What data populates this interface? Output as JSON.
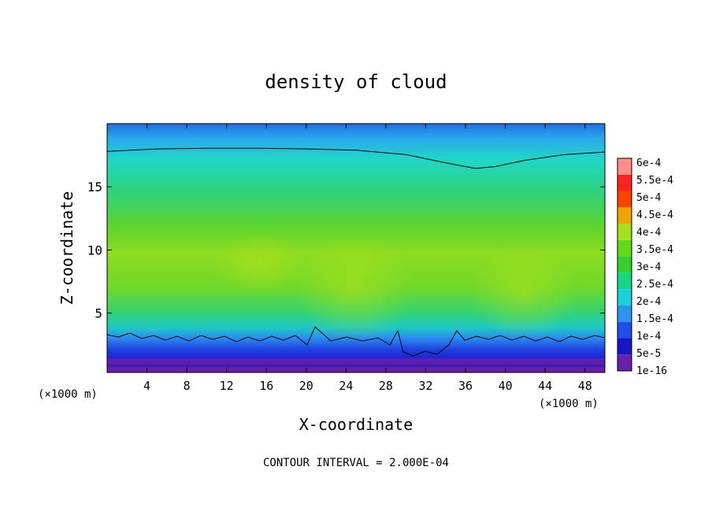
{
  "chart_data": {
    "type": "heatmap",
    "title": "density of cloud",
    "xlabel": "X-coordinate",
    "ylabel": "Z-coordinate",
    "x_unit": "(×1000 m)",
    "x_unit_right": "(×1000 m)",
    "xlim": [
      0,
      50
    ],
    "ylim": [
      0.3,
      20
    ],
    "x_ticks": [
      4,
      8,
      12,
      16,
      20,
      24,
      28,
      32,
      36,
      40,
      44,
      48
    ],
    "y_ticks": [
      5,
      10,
      15
    ],
    "colorbar": {
      "labels": [
        "1e-16",
        "5e-5",
        "1e-4",
        "1.5e-4",
        "2e-4",
        "2.5e-4",
        "3e-4",
        "3.5e-4",
        "4e-4",
        "4.5e-4",
        "5e-4",
        "5.5e-4",
        "6e-4"
      ],
      "colors": [
        "#6a1fa8",
        "#1a14c8",
        "#1f4fe6",
        "#2a95ee",
        "#19d0d8",
        "#16d683",
        "#35cf2d",
        "#63d817",
        "#a4e01b",
        "#f0a400",
        "#ff4200",
        "#ff2222",
        "#ff8d8d"
      ]
    },
    "contour_line_z": [
      [
        0,
        17.8
      ],
      [
        5,
        18.0
      ],
      [
        10,
        18.05
      ],
      [
        15,
        18.05
      ],
      [
        20,
        18.0
      ],
      [
        25,
        17.9
      ],
      [
        30,
        17.55
      ],
      [
        34,
        16.9
      ],
      [
        37,
        16.45
      ],
      [
        39,
        16.6
      ],
      [
        42,
        17.1
      ],
      [
        46,
        17.55
      ],
      [
        50,
        17.75
      ]
    ],
    "annotation": "CONTOUR INTERVAL = 2.000E-04"
  }
}
